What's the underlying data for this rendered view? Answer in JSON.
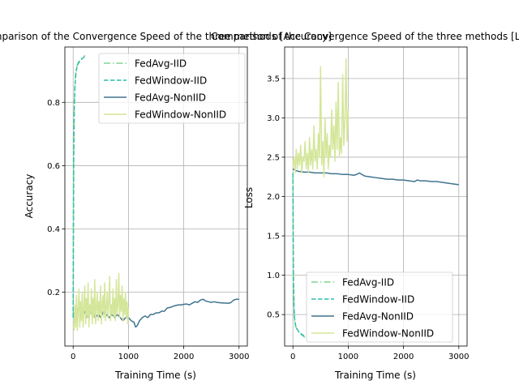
{
  "figure": {
    "background": "#ffffff"
  },
  "chart_data": [
    {
      "type": "line",
      "title": "Comparison of the Convergence Speed of the three methods [Accuracy]",
      "xlabel": "Training Time (s)",
      "ylabel": "Accuracy",
      "xlim": [
        -150,
        3150
      ],
      "ylim": [
        0.03,
        0.975
      ],
      "xticks": [
        0,
        1000,
        2000,
        3000
      ],
      "xtick_labels": [
        "0",
        "1000",
        "2000",
        "3000"
      ],
      "yticks": [
        0.2,
        0.4,
        0.6,
        0.8
      ],
      "ytick_labels": [
        "0.2",
        "0.4",
        "0.6",
        "0.8"
      ],
      "grid": true,
      "legend": "top-right",
      "series": [
        {
          "name": "FedAvg-IID",
          "color": "#7fd694",
          "style": "dashdot",
          "x": [
            0,
            5,
            10,
            20,
            30,
            40,
            50,
            60,
            70,
            80,
            90,
            100,
            120,
            140,
            160,
            180,
            200,
            220
          ],
          "y": [
            0.12,
            0.45,
            0.68,
            0.8,
            0.85,
            0.88,
            0.9,
            0.91,
            0.915,
            0.92,
            0.925,
            0.928,
            0.932,
            0.936,
            0.94,
            0.943,
            0.946,
            0.948
          ]
        },
        {
          "name": "FedWindow-IID",
          "color": "#2bbfaa",
          "style": "dashed",
          "x": [
            0,
            5,
            10,
            20,
            30,
            40,
            50,
            60,
            70,
            80,
            90,
            100,
            120,
            140,
            160,
            180,
            200,
            220
          ],
          "y": [
            0.12,
            0.4,
            0.62,
            0.78,
            0.84,
            0.87,
            0.89,
            0.905,
            0.912,
            0.918,
            0.922,
            0.925,
            0.93,
            0.934,
            0.938,
            0.941,
            0.944,
            0.946
          ]
        },
        {
          "name": "FedAvg-NonIID",
          "color": "#40738f",
          "style": "solid",
          "x": [
            0,
            50,
            100,
            150,
            200,
            250,
            300,
            350,
            400,
            450,
            500,
            550,
            600,
            650,
            700,
            750,
            800,
            850,
            900,
            950,
            1000,
            1050,
            1100,
            1130,
            1160,
            1200,
            1250,
            1300,
            1350,
            1400,
            1450,
            1500,
            1550,
            1600,
            1650,
            1700,
            1750,
            1800,
            1850,
            1900,
            1950,
            2000,
            2050,
            2100,
            2150,
            2200,
            2250,
            2300,
            2350,
            2400,
            2450,
            2500,
            2550,
            2600,
            2650,
            2700,
            2750,
            2800,
            2850,
            2900,
            2950,
            3000
          ],
          "y": [
            0.13,
            0.14,
            0.15,
            0.13,
            0.14,
            0.12,
            0.13,
            0.14,
            0.12,
            0.13,
            0.12,
            0.14,
            0.13,
            0.12,
            0.13,
            0.12,
            0.13,
            0.12,
            0.11,
            0.12,
            0.12,
            0.11,
            0.105,
            0.09,
            0.095,
            0.11,
            0.12,
            0.125,
            0.12,
            0.13,
            0.13,
            0.135,
            0.135,
            0.14,
            0.14,
            0.15,
            0.152,
            0.155,
            0.158,
            0.16,
            0.16,
            0.162,
            0.163,
            0.16,
            0.165,
            0.17,
            0.168,
            0.175,
            0.178,
            0.172,
            0.17,
            0.168,
            0.17,
            0.168,
            0.167,
            0.166,
            0.166,
            0.165,
            0.167,
            0.175,
            0.178,
            0.178
          ]
        },
        {
          "name": "FedWindow-NonIID",
          "color": "#d4e699",
          "style": "solid",
          "x": [
            0,
            15,
            30,
            45,
            60,
            75,
            90,
            105,
            120,
            135,
            150,
            165,
            180,
            195,
            210,
            225,
            240,
            255,
            270,
            285,
            300,
            315,
            330,
            345,
            360,
            375,
            390,
            405,
            420,
            435,
            450,
            465,
            480,
            495,
            510,
            525,
            540,
            555,
            570,
            585,
            600,
            615,
            630,
            645,
            660,
            675,
            690,
            705,
            720,
            735,
            750,
            765,
            780,
            795,
            810,
            825,
            840,
            855,
            870,
            885,
            900,
            915,
            930,
            945,
            960,
            975,
            990,
            1000
          ],
          "y": [
            0.1,
            0.08,
            0.16,
            0.09,
            0.19,
            0.08,
            0.14,
            0.21,
            0.09,
            0.17,
            0.11,
            0.2,
            0.09,
            0.15,
            0.22,
            0.1,
            0.18,
            0.12,
            0.23,
            0.09,
            0.16,
            0.13,
            0.21,
            0.1,
            0.18,
            0.12,
            0.24,
            0.1,
            0.15,
            0.2,
            0.11,
            0.17,
            0.13,
            0.22,
            0.1,
            0.16,
            0.19,
            0.12,
            0.23,
            0.11,
            0.15,
            0.2,
            0.12,
            0.17,
            0.25,
            0.11,
            0.16,
            0.13,
            0.21,
            0.12,
            0.18,
            0.11,
            0.24,
            0.13,
            0.16,
            0.26,
            0.12,
            0.19,
            0.14,
            0.22,
            0.11,
            0.18,
            0.13,
            0.2,
            0.12,
            0.17,
            0.1,
            0.15
          ]
        }
      ]
    },
    {
      "type": "line",
      "title": "Comparison of the Convergence Speed of the three methods [Loss]",
      "xlabel": "Training Time (s)",
      "ylabel": "Loss",
      "xlim": [
        -150,
        3150
      ],
      "ylim": [
        0.1,
        3.9
      ],
      "xticks": [
        0,
        1000,
        2000,
        3000
      ],
      "xtick_labels": [
        "0",
        "1000",
        "2000",
        "3000"
      ],
      "yticks": [
        0.5,
        1.0,
        1.5,
        2.0,
        2.5,
        3.0,
        3.5
      ],
      "ytick_labels": [
        "0.5",
        "1.0",
        "1.5",
        "2.0",
        "2.5",
        "3.0",
        "3.5"
      ],
      "grid": true,
      "legend": "bottom-right",
      "series": [
        {
          "name": "FedAvg-IID",
          "color": "#7fd694",
          "style": "dashdot",
          "x": [
            0,
            5,
            10,
            20,
            30,
            40,
            50,
            60,
            80,
            100,
            120,
            140,
            160,
            180,
            200,
            220
          ],
          "y": [
            2.3,
            1.3,
            0.85,
            0.55,
            0.43,
            0.38,
            0.35,
            0.33,
            0.3,
            0.28,
            0.26,
            0.25,
            0.24,
            0.23,
            0.22,
            0.21
          ]
        },
        {
          "name": "FedWindow-IID",
          "color": "#2bbfaa",
          "style": "dashed",
          "x": [
            0,
            5,
            10,
            20,
            30,
            40,
            50,
            60,
            80,
            100,
            120,
            140,
            160,
            180,
            200,
            220
          ],
          "y": [
            2.3,
            1.5,
            0.95,
            0.6,
            0.46,
            0.4,
            0.36,
            0.34,
            0.31,
            0.29,
            0.27,
            0.26,
            0.25,
            0.24,
            0.23,
            0.22
          ]
        },
        {
          "name": "FedAvg-NonIID",
          "color": "#40738f",
          "style": "solid",
          "x": [
            0,
            50,
            100,
            200,
            300,
            400,
            500,
            600,
            700,
            800,
            900,
            1000,
            1100,
            1150,
            1200,
            1250,
            1300,
            1400,
            1500,
            1600,
            1700,
            1800,
            1900,
            2000,
            2100,
            2200,
            2250,
            2300,
            2400,
            2500,
            2600,
            2700,
            2800,
            2900,
            3000
          ],
          "y": [
            2.35,
            2.33,
            2.32,
            2.31,
            2.31,
            2.3,
            2.3,
            2.3,
            2.29,
            2.29,
            2.28,
            2.28,
            2.27,
            2.28,
            2.3,
            2.28,
            2.26,
            2.25,
            2.24,
            2.23,
            2.22,
            2.22,
            2.21,
            2.21,
            2.2,
            2.19,
            2.21,
            2.2,
            2.2,
            2.19,
            2.19,
            2.18,
            2.17,
            2.16,
            2.15
          ]
        },
        {
          "name": "FedWindow-NonIID",
          "color": "#d4e699",
          "style": "solid",
          "x": [
            0,
            20,
            40,
            60,
            80,
            100,
            120,
            140,
            160,
            180,
            200,
            220,
            240,
            260,
            280,
            300,
            320,
            340,
            360,
            380,
            400,
            420,
            440,
            460,
            480,
            500,
            520,
            540,
            560,
            580,
            600,
            620,
            640,
            660,
            680,
            700,
            720,
            740,
            760,
            780,
            800,
            820,
            840,
            860,
            880,
            900,
            920,
            940,
            960,
            980,
            1000
          ],
          "y": [
            2.4,
            2.5,
            2.3,
            2.6,
            2.35,
            2.55,
            2.4,
            2.65,
            2.3,
            2.5,
            2.45,
            2.7,
            2.35,
            2.55,
            2.3,
            2.75,
            2.4,
            2.6,
            2.35,
            2.9,
            2.45,
            2.6,
            2.35,
            2.8,
            2.5,
            3.65,
            2.4,
            2.7,
            2.25,
            3.0,
            2.5,
            2.8,
            2.35,
            2.65,
            2.5,
            3.1,
            2.6,
            2.9,
            2.45,
            3.2,
            2.6,
            3.45,
            2.5,
            2.75,
            2.55,
            3.55,
            2.65,
            2.95,
            3.75,
            2.7,
            3.1
          ]
        }
      ]
    }
  ]
}
